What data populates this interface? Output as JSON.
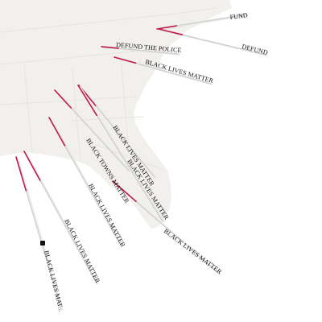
{
  "colors": {
    "land": "#f2f0ec",
    "water": "#ffffff",
    "borders": "#e6e3dd",
    "stick": "#c9c9c9",
    "stick_accent": "#c0184c",
    "label_text": "#111111"
  },
  "markers": [
    {
      "id": "fund-top",
      "label": "FUND"
    },
    {
      "id": "defund-right",
      "label": "DEFUND"
    },
    {
      "id": "defund-the-police",
      "label": "DEFUND THE POLICE"
    },
    {
      "id": "blm-1",
      "label": "BLACK LIVES MATTER"
    },
    {
      "id": "blm-2",
      "label": "BLACK LIVES MATTER"
    },
    {
      "id": "blm-3",
      "label": "BLACK LIVES MATTER"
    },
    {
      "id": "black-towns-matter",
      "label": "BLACK TOWNS MATTER"
    },
    {
      "id": "blm-4",
      "label": "BLACK LIVES MATTER"
    },
    {
      "id": "blm-5",
      "label": "BLACK LIVES MATTER"
    },
    {
      "id": "blm-6",
      "label": "BLACK LIVES MATTER"
    },
    {
      "id": "blm-7",
      "label": "BLACK LIVES MAT..."
    }
  ]
}
